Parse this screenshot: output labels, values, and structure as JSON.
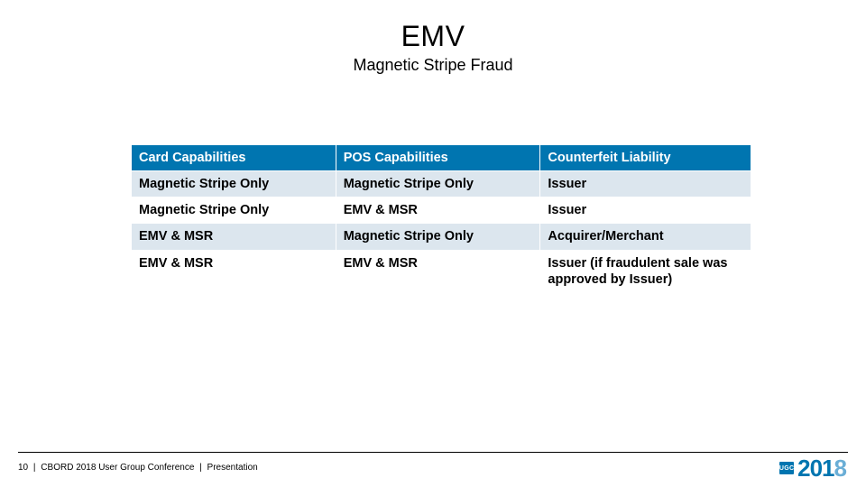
{
  "title": "EMV",
  "subtitle": "Magnetic Stripe Fraud",
  "table": {
    "columns": [
      "Card Capabilities",
      "POS Capabilities",
      "Counterfeit Liability"
    ],
    "rows": [
      [
        "Magnetic Stripe Only",
        "Magnetic Stripe Only",
        "Issuer"
      ],
      [
        "Magnetic Stripe Only",
        "EMV & MSR",
        "Issuer"
      ],
      [
        "EMV & MSR",
        "Magnetic Stripe Only",
        "Acquirer/Merchant"
      ],
      [
        "EMV & MSR",
        "EMV & MSR",
        "Issuer (if fraudulent sale was approved by Issuer)"
      ]
    ],
    "header_bg": "#0075b0",
    "header_fg": "#ffffff",
    "alt_row_bg": "#dce6ee",
    "row_bg": "#ffffff",
    "border_color": "#ffffff",
    "font_size": 14.5,
    "col_widths_pct": [
      33,
      33,
      34
    ]
  },
  "footer": {
    "page_number": "10",
    "text1": "CBORD 2018 User Group Conference",
    "text2": "Presentation",
    "line_color": "#000000"
  },
  "logo": {
    "badge_text": "UGC",
    "year_main": "201",
    "year_last": "8",
    "primary_color": "#0075b0",
    "accent_color": "#6aaed6"
  },
  "colors": {
    "background": "#ffffff",
    "text": "#000000"
  }
}
